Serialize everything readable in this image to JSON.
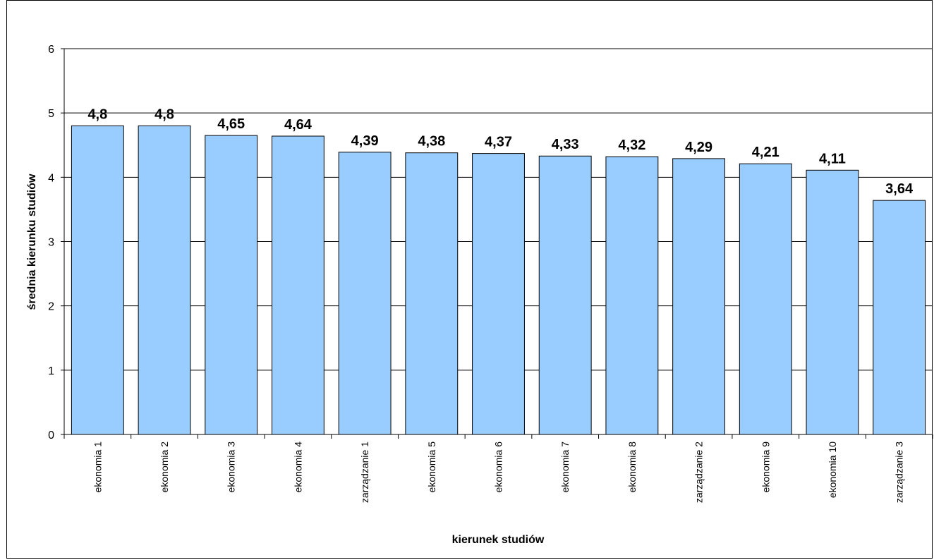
{
  "chart_data": {
    "type": "bar",
    "xlabel": "kierunek studiów",
    "ylabel": "średnia kierunku studiów",
    "ylim": [
      0,
      6
    ],
    "yticks": [
      "0",
      "1",
      "2",
      "3",
      "4",
      "5",
      "6"
    ],
    "grid": true,
    "categories": [
      "ekonomia 1",
      "ekonomia 2",
      "ekonomia 3",
      "ekonomia 4",
      "zarządzanie 1",
      "ekonomia 5",
      "ekonomia 6",
      "ekonomia 7",
      "ekonomia 8",
      "zarządzanie 2",
      "ekonomia 9",
      "ekonomia 10",
      "zarządzanie 3"
    ],
    "values": [
      4.8,
      4.8,
      4.65,
      4.64,
      4.39,
      4.38,
      4.37,
      4.33,
      4.32,
      4.29,
      4.21,
      4.11,
      3.64
    ],
    "value_labels": [
      "4,8",
      "4,8",
      "4,65",
      "4,64",
      "4,39",
      "4,38",
      "4,37",
      "4,33",
      "4,32",
      "4,29",
      "4,21",
      "4,11",
      "3,64"
    ],
    "bar_color": "#99ccff"
  }
}
